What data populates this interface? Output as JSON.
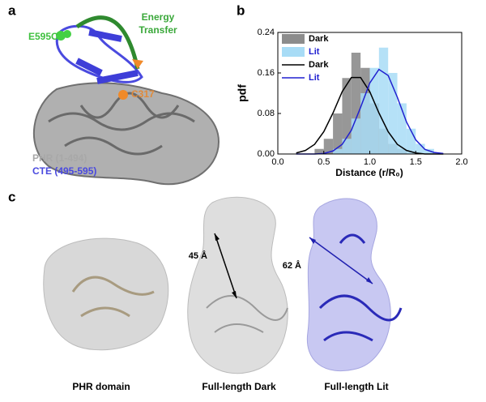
{
  "panel_a": {
    "label": "a",
    "e595c": "E595C",
    "energy": "Energy",
    "transfer": "Transfer",
    "c317": "C317",
    "phr": "PHR (1-494)",
    "cte": "CTE (495-595)"
  },
  "chart_data": {
    "type": "histogram",
    "panel_label": "b",
    "xlabel": "Distance (r/R₀)",
    "ylabel": "pdf",
    "bins": [
      0.4,
      0.5,
      0.6,
      0.7,
      0.8,
      0.9,
      1.0,
      1.1,
      1.2,
      1.3,
      1.4,
      1.5,
      1.6,
      1.7
    ],
    "series": [
      {
        "name": "Dark",
        "color": "#8c8c8c",
        "text_color": "#000000",
        "values": [
          0.01,
          0.03,
          0.08,
          0.15,
          0.2,
          0.17,
          0.1,
          0.05,
          0.02,
          0.01,
          0,
          0,
          0
        ]
      },
      {
        "name": "Lit",
        "color": "#a8dcf6",
        "text_color": "#2020d0",
        "values": [
          0,
          0,
          0.01,
          0.03,
          0.07,
          0.12,
          0.17,
          0.21,
          0.16,
          0.1,
          0.05,
          0.02,
          0.01
        ]
      }
    ],
    "fit": {
      "type": "line",
      "x": [
        0.2,
        0.3,
        0.4,
        0.5,
        0.6,
        0.7,
        0.8,
        0.9,
        1.0,
        1.1,
        1.2,
        1.3,
        1.4,
        1.5,
        1.6,
        1.7,
        1.8
      ],
      "series": [
        {
          "name": "Dark",
          "color": "#000000",
          "text_color": "#000000",
          "values": [
            0.002,
            0.007,
            0.019,
            0.044,
            0.081,
            0.123,
            0.151,
            0.151,
            0.123,
            0.081,
            0.044,
            0.019,
            0.007,
            0.002,
            0,
            0,
            0
          ]
        },
        {
          "name": "Lit",
          "color": "#2020d0",
          "text_color": "#2020d0",
          "values": [
            0,
            0,
            0,
            0.001,
            0.006,
            0.019,
            0.047,
            0.092,
            0.14,
            0.167,
            0.155,
            0.112,
            0.063,
            0.028,
            0.009,
            0.003,
            0.001
          ]
        }
      ]
    },
    "xlim": [
      0,
      2.0
    ],
    "ylim": [
      0,
      0.24
    ],
    "xticks": [
      {
        "value": 0,
        "label": "0.0"
      },
      {
        "value": 0.5,
        "label": "0.5"
      },
      {
        "value": 1.0,
        "label": "1.0"
      },
      {
        "value": 1.5,
        "label": "1.5"
      },
      {
        "value": 2.0,
        "label": "2.0"
      }
    ],
    "yticks": [
      {
        "value": 0,
        "label": "0.00"
      },
      {
        "value": 0.08,
        "label": "0.08"
      },
      {
        "value": 0.16,
        "label": "0.16"
      },
      {
        "value": 0.24,
        "label": "0.24"
      }
    ],
    "legend": "upper left"
  },
  "panel_c": {
    "label": "c",
    "dist_dark": "45 Å",
    "dist_lit": "62 Å",
    "captions": [
      "PHR domain",
      "Full-length Dark",
      "Full-length Lit"
    ]
  }
}
